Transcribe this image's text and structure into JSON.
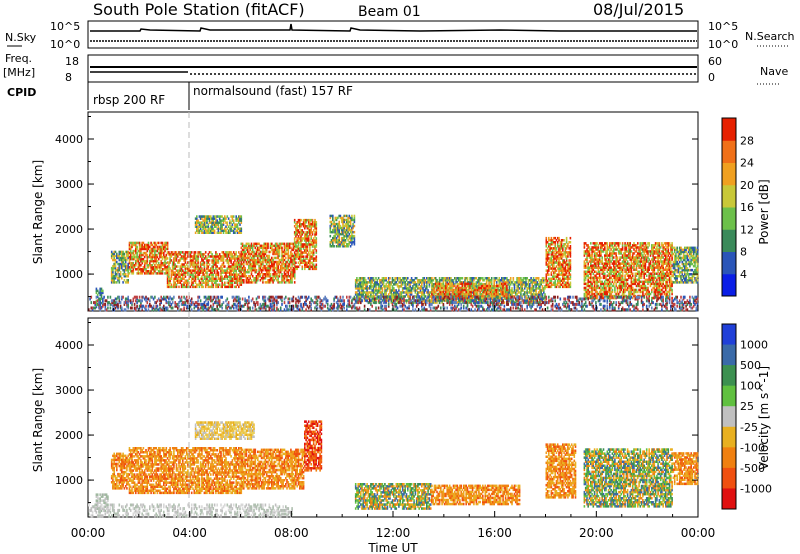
{
  "header": {
    "station": "South Pole Station (fitACF)",
    "beam": "Beam 01",
    "date": "08/Jul/2015"
  },
  "top_strip": {
    "left_label_sky": "N.Sky",
    "left_label_freq_1": "Freq.",
    "left_label_freq_2": "[MHz]",
    "left_label_cpid": "CPID",
    "right_label_search": "N.Search",
    "right_label_nave": "Nave",
    "nsky_ticks": [
      "10^5",
      "10^0"
    ],
    "nsearch_ticks": [
      "10^5",
      "10^0"
    ],
    "freq_ticks": [
      "18",
      "8"
    ],
    "nave_ticks": [
      "60",
      "0"
    ],
    "cpid_segments": [
      {
        "label": "rbsp 200 RF"
      },
      {
        "label": "normalsound (fast) 157 RF"
      }
    ]
  },
  "chart_data": [
    {
      "type": "heatmap",
      "name": "power-panel",
      "ylabel": "Slant Range [km]",
      "ylim": [
        180,
        4600
      ],
      "y_ticks": [
        "1000",
        "2000",
        "3000",
        "4000"
      ],
      "x_hours": [
        0,
        4,
        8,
        12,
        16,
        20,
        24
      ],
      "colorbar": {
        "label": "Power [dB]",
        "ticks": [
          "4",
          "8",
          "12",
          "16",
          "20",
          "24",
          "28"
        ],
        "colors": [
          "#0a1ee6",
          "#2a55b8",
          "#3a8a5a",
          "#6cc04a",
          "#c8c838",
          "#f0a020",
          "#f07018",
          "#e62000"
        ]
      },
      "regions": [
        {
          "t0": 0.3,
          "t1": 0.6,
          "r0": 250,
          "r1": 700,
          "v": "low"
        },
        {
          "t0": 0.9,
          "t1": 1.6,
          "r0": 800,
          "r1": 1500,
          "v": "mid"
        },
        {
          "t0": 1.6,
          "t1": 3.1,
          "r0": 1000,
          "r1": 1700,
          "v": "high"
        },
        {
          "t0": 3.1,
          "t1": 6.0,
          "r0": 700,
          "r1": 1500,
          "v": "high"
        },
        {
          "t0": 6.0,
          "t1": 8.1,
          "r0": 800,
          "r1": 1700,
          "v": "high"
        },
        {
          "t0": 8.1,
          "t1": 9.0,
          "r0": 1100,
          "r1": 2200,
          "v": "high"
        },
        {
          "t0": 4.2,
          "t1": 6.0,
          "r0": 1900,
          "r1": 2300,
          "v": "mid"
        },
        {
          "t0": 9.5,
          "t1": 10.5,
          "r0": 1600,
          "r1": 2300,
          "v": "mid"
        },
        {
          "t0": 10.5,
          "t1": 18.0,
          "r0": 350,
          "r1": 900,
          "v": "mid"
        },
        {
          "t0": 13.5,
          "t1": 16.5,
          "r0": 450,
          "r1": 800,
          "v": "high"
        },
        {
          "t0": 18.0,
          "t1": 19.0,
          "r0": 700,
          "r1": 1800,
          "v": "high"
        },
        {
          "t0": 19.5,
          "t1": 23.0,
          "r0": 450,
          "r1": 1700,
          "v": "high"
        },
        {
          "t0": 23.0,
          "t1": 24.0,
          "r0": 800,
          "r1": 1600,
          "v": "mid"
        },
        {
          "t0": 0.0,
          "t1": 24.0,
          "r0": 200,
          "r1": 500,
          "v": "scatter"
        }
      ]
    },
    {
      "type": "heatmap",
      "name": "velocity-panel",
      "ylabel": "Slant Range [km]",
      "ylim": [
        180,
        4600
      ],
      "y_ticks": [
        "1000",
        "2000",
        "3000",
        "4000"
      ],
      "x_hours": [
        0,
        4,
        8,
        12,
        16,
        20,
        24
      ],
      "xlabel": "Time UT",
      "x_tick_labels": [
        "00:00",
        "04:00",
        "08:00",
        "12:00",
        "16:00",
        "20:00",
        "00:00"
      ],
      "colorbar": {
        "label": "Velocity [m s^-1]",
        "ticks": [
          "1000",
          "500",
          "100",
          "25",
          "-25",
          "-100",
          "-500",
          "-1000"
        ],
        "colors": [
          "#2040d8",
          "#3a6aa8",
          "#3c9050",
          "#60c040",
          "#c0c0c0",
          "#e8b020",
          "#f08010",
          "#f05010",
          "#e01010"
        ]
      },
      "regions": [
        {
          "t0": 0.3,
          "t1": 0.8,
          "r0": 300,
          "r1": 700,
          "v": "gray"
        },
        {
          "t0": 0.9,
          "t1": 1.6,
          "r0": 800,
          "r1": 1600,
          "v": "orange"
        },
        {
          "t0": 1.6,
          "t1": 6.0,
          "r0": 700,
          "r1": 1700,
          "v": "orange"
        },
        {
          "t0": 6.0,
          "t1": 8.5,
          "r0": 800,
          "r1": 1700,
          "v": "orange"
        },
        {
          "t0": 8.5,
          "t1": 9.2,
          "r0": 1200,
          "r1": 2300,
          "v": "red"
        },
        {
          "t0": 4.2,
          "t1": 6.5,
          "r0": 1900,
          "r1": 2300,
          "v": "yellow"
        },
        {
          "t0": 10.5,
          "t1": 13.5,
          "r0": 350,
          "r1": 900,
          "v": "green"
        },
        {
          "t0": 13.5,
          "t1": 17.0,
          "r0": 450,
          "r1": 900,
          "v": "orange"
        },
        {
          "t0": 18.0,
          "t1": 19.2,
          "r0": 600,
          "r1": 1800,
          "v": "orange"
        },
        {
          "t0": 19.5,
          "t1": 23.0,
          "r0": 400,
          "r1": 1700,
          "v": "green"
        },
        {
          "t0": 23.0,
          "t1": 24.0,
          "r0": 900,
          "r1": 1600,
          "v": "orange"
        },
        {
          "t0": 0.0,
          "t1": 8.0,
          "r0": 200,
          "r1": 450,
          "v": "grayscatter"
        }
      ]
    }
  ]
}
